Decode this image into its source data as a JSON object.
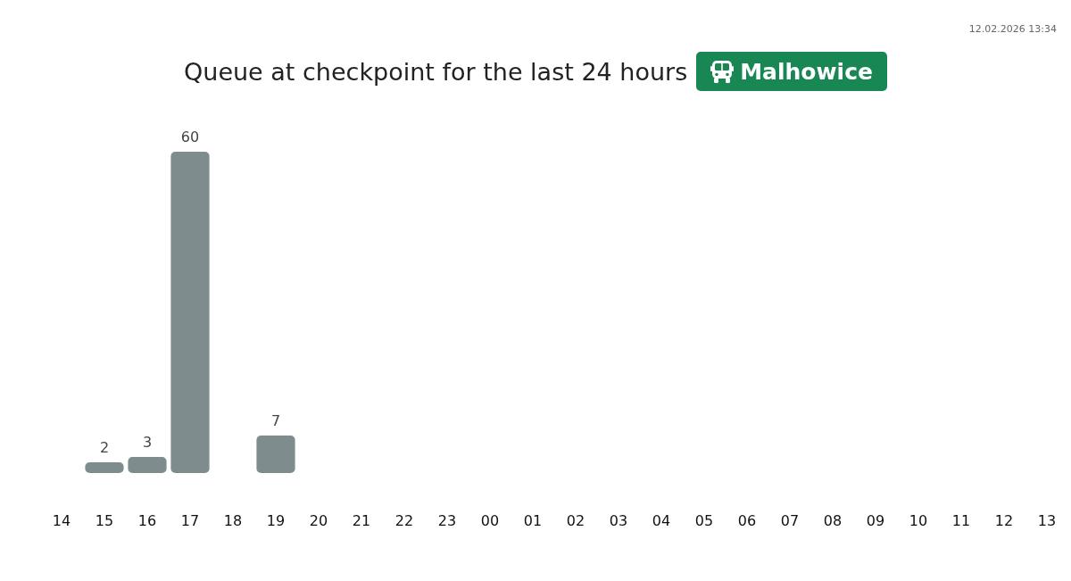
{
  "chart_data": {
    "type": "bar",
    "title": "Queue at checkpoint for the last 24 hours",
    "subtitle": "Malhowice",
    "annotations": [
      "12.02.2026 13:34"
    ],
    "categories": [
      "14",
      "15",
      "16",
      "17",
      "18",
      "19",
      "20",
      "21",
      "22",
      "23",
      "00",
      "01",
      "02",
      "03",
      "04",
      "05",
      "06",
      "07",
      "08",
      "09",
      "10",
      "11",
      "12",
      "13"
    ],
    "values": [
      null,
      2,
      3,
      60,
      null,
      7,
      null,
      null,
      null,
      null,
      null,
      null,
      null,
      null,
      null,
      null,
      null,
      null,
      null,
      null,
      null,
      null,
      null,
      null
    ],
    "color": "#7f8c8d",
    "data_labels": true
  }
}
